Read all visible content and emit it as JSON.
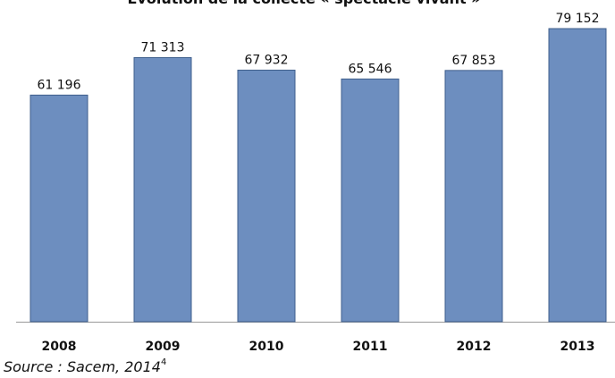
{
  "chart_data": {
    "type": "bar",
    "title": "Évolution de la collecte « spectacle vivant »",
    "categories": [
      "2008",
      "2009",
      "2010",
      "2011",
      "2012",
      "2013"
    ],
    "values": [
      61196,
      71313,
      67932,
      65546,
      67853,
      79152
    ],
    "value_labels": [
      "61 196",
      "71 313",
      "67 932",
      "65 546",
      "67 853",
      "79 152"
    ],
    "color": "#6d8ebf",
    "ylim": [
      0,
      80000
    ],
    "source": "Source : Sacem, 2014",
    "footnote": "4"
  }
}
